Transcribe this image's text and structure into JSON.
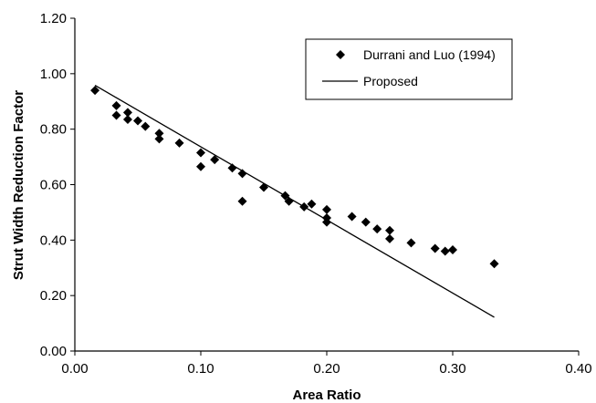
{
  "chart_data": {
    "type": "scatter",
    "title": "",
    "xlabel": "Area Ratio",
    "ylabel": "Strut Width Reduction Factor",
    "xlim": [
      0.0,
      0.4
    ],
    "ylim": [
      0.0,
      1.2
    ],
    "x_ticks": [
      "0.00",
      "0.10",
      "0.20",
      "0.30",
      "0.40"
    ],
    "y_ticks": [
      "0.00",
      "0.20",
      "0.40",
      "0.60",
      "0.80",
      "1.00",
      "1.20"
    ],
    "grid": false,
    "legend_position": "top-right",
    "series": [
      {
        "name": "Durrani and Luo (1994)",
        "type": "scatter",
        "marker": "diamond",
        "color": "#000000",
        "points": [
          [
            0.016,
            0.94
          ],
          [
            0.033,
            0.885
          ],
          [
            0.033,
            0.85
          ],
          [
            0.042,
            0.86
          ],
          [
            0.042,
            0.835
          ],
          [
            0.05,
            0.83
          ],
          [
            0.056,
            0.81
          ],
          [
            0.067,
            0.785
          ],
          [
            0.067,
            0.765
          ],
          [
            0.083,
            0.75
          ],
          [
            0.1,
            0.715
          ],
          [
            0.1,
            0.665
          ],
          [
            0.111,
            0.69
          ],
          [
            0.125,
            0.66
          ],
          [
            0.133,
            0.64
          ],
          [
            0.133,
            0.54
          ],
          [
            0.15,
            0.59
          ],
          [
            0.167,
            0.56
          ],
          [
            0.17,
            0.54
          ],
          [
            0.182,
            0.52
          ],
          [
            0.188,
            0.53
          ],
          [
            0.2,
            0.51
          ],
          [
            0.2,
            0.48
          ],
          [
            0.2,
            0.465
          ],
          [
            0.22,
            0.485
          ],
          [
            0.231,
            0.465
          ],
          [
            0.24,
            0.44
          ],
          [
            0.25,
            0.435
          ],
          [
            0.25,
            0.405
          ],
          [
            0.267,
            0.39
          ],
          [
            0.286,
            0.37
          ],
          [
            0.294,
            0.36
          ],
          [
            0.3,
            0.365
          ],
          [
            0.333,
            0.315
          ]
        ]
      },
      {
        "name": "Proposed",
        "type": "line",
        "color": "#000000",
        "points": [
          [
            0.016,
            0.958
          ],
          [
            0.333,
            0.122
          ]
        ]
      }
    ]
  }
}
